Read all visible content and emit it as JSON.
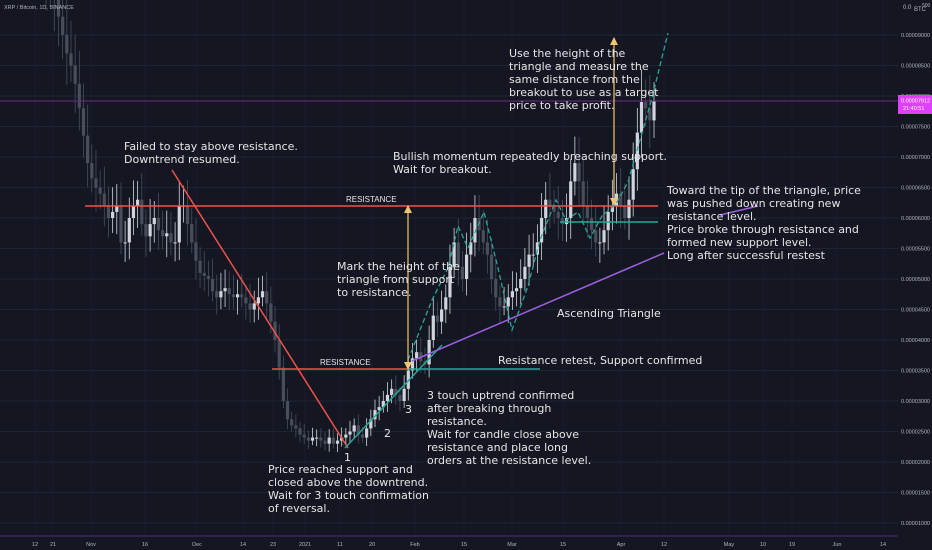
{
  "header": {
    "symbol": "XRP / Bitcoin, 1D, BINANCE",
    "axis_top": "0.0",
    "currency": "BTC",
    "axis_top_value": "500"
  },
  "price_axis": {
    "ticks": [
      "0.00009000",
      "0.00008500",
      "0.00008000",
      "0.00007500",
      "0.00007000",
      "0.00006500",
      "0.00006000",
      "0.00005500",
      "0.00005000",
      "0.00004500",
      "0.00004000",
      "0.00003500",
      "0.00003000",
      "0.00002500",
      "0.00002000",
      "0.00001500",
      "0.00001000"
    ],
    "current_price": "0.00007912",
    "countdown": "21:40:51"
  },
  "time_axis": {
    "labels": [
      "12",
      "21",
      "Nov",
      "16",
      "Dec",
      "14",
      "23",
      "2021",
      "11",
      "20",
      "Feb",
      "15",
      "Mar",
      "15",
      "Apr",
      "12",
      "May",
      "10",
      "19",
      "Jun",
      "14"
    ]
  },
  "annotations": {
    "failed": [
      "Failed to stay above resistance.",
      "Downtrend resumed."
    ],
    "bullish": [
      "Bullish momentum repeatedly breaching support.",
      "Wait for breakout."
    ],
    "use_height": [
      "Use the height of the",
      "triangle and measure the",
      "same distance from the",
      "breakout to use as a target",
      "price to take profit."
    ],
    "toward_tip": [
      "Toward the tip of the triangle, price",
      "was pushed down creating new",
      "resistance level.",
      "Price broke through resistance and",
      "formed new support level.",
      "Long after successful restest"
    ],
    "mark_height": [
      "Mark the height of the",
      "triangle from support",
      "to resistance."
    ],
    "resistance_retest": "Resistance retest, Support confirmed",
    "ascending_triangle": "Ascending Triangle",
    "three_touch": [
      "3 touch uptrend confirmed",
      "after breaking through",
      "resistance.",
      "Wait for candle close above",
      "resistance and place long",
      "orders at the resistance level."
    ],
    "price_reached": [
      "Price reached support  and",
      "closed above the downtrend.",
      "Wait for 3 touch confirmation",
      "of reversal."
    ],
    "resistance_upper": "RESISTANCE",
    "resistance_lower": "RESISTANCE",
    "touch_1": "1",
    "touch_2": "2",
    "touch_3": "3"
  },
  "chart_data": {
    "type": "candlestick",
    "title": "XRP / Bitcoin, 1D, BINANCE",
    "xlabel": "",
    "ylabel": "",
    "ylim": [
      6.5e-06,
      0.0001
    ],
    "levels": {
      "upper_resistance": 6.23e-05,
      "lower_resistance": 3.55e-05,
      "new_support": 5.98e-05,
      "current_price": 7.912e-05
    },
    "close_series": [
      0.0001,
      9.85e-05,
      9.6e-05,
      9.3e-05,
      9e-05,
      8.7e-05,
      8.5e-05,
      8.2e-05,
      7.8e-05,
      7.35e-05,
      6.9e-05,
      6.65e-05,
      6.5e-05,
      6.4e-05,
      6.2e-05,
      6e-05,
      6.1e-05,
      6.2e-05,
      5.6e-05,
      5.6e-05,
      6e-05,
      6.2e-05,
      6.3e-05,
      5.9e-05,
      5.7e-05,
      5.9e-05,
      6e-05,
      5.8e-05,
      5.7e-05,
      5.75e-05,
      5.6e-05,
      5.6e-05,
      6.2e-05,
      6.2e-05,
      5.9e-05,
      5.6e-05,
      5.3e-05,
      5.1e-05,
      5.05e-05,
      5e-05,
      4.8e-05,
      4.7e-05,
      4.8e-05,
      4.85e-05,
      4.75e-05,
      4.7e-05,
      4.75e-05,
      4.7e-05,
      4.6e-05,
      4.5e-05,
      4.6e-05,
      4.7e-05,
      4.8e-05,
      4.6e-05,
      4.3e-05,
      4e-05,
      3.55e-05,
      3e-05,
      2.7e-05,
      2.6e-05,
      2.55e-05,
      2.45e-05,
      2.4e-05,
      2.35e-05,
      2.4e-05,
      2.4e-05,
      2.35e-05,
      2.3e-05,
      2.4e-05,
      2.3e-05,
      2.35e-05,
      2.4e-05,
      2.45e-05,
      2.5e-05,
      2.6e-05,
      2.45e-05,
      2.4e-05,
      2.55e-05,
      2.7e-05,
      2.85e-05,
      2.9e-05,
      3e-05,
      3.1e-05,
      3.2e-05,
      3.1e-05,
      3e-05,
      3.2e-05,
      3.5e-05,
      3.7e-05,
      3.8e-05,
      3.65e-05,
      3.6e-05,
      4e-05,
      4.4e-05,
      4.3e-05,
      4.5e-05,
      4.7e-05,
      5.2e-05,
      5.6e-05,
      5.2e-05,
      5e-05,
      5.4e-05,
      5.6e-05,
      6e-05,
      5.8e-05,
      5.6e-05,
      5.4e-05,
      5e-05,
      4.7e-05,
      4.55e-05,
      4.55e-05,
      4.7e-05,
      4.8e-05,
      4.85e-05,
      5e-05,
      5.2e-05,
      5.4e-05,
      5.4e-05,
      5.6e-05,
      6e-05,
      6.3e-05,
      6.2e-05,
      6.1e-05,
      6e-05,
      5.9e-05,
      6e-05,
      6.6e-05,
      6.9e-05,
      6.6e-05,
      6.2e-05,
      6e-05,
      5.8e-05,
      5.6e-05,
      5.6e-05,
      5.8e-05,
      6.1e-05,
      6.2e-05,
      6.4e-05,
      6.2e-05,
      6e-05,
      6.3e-05,
      6.8e-05,
      7.4e-05,
      7.9e-05,
      7.8e-05,
      7.6e-05,
      7.91e-05
    ]
  }
}
